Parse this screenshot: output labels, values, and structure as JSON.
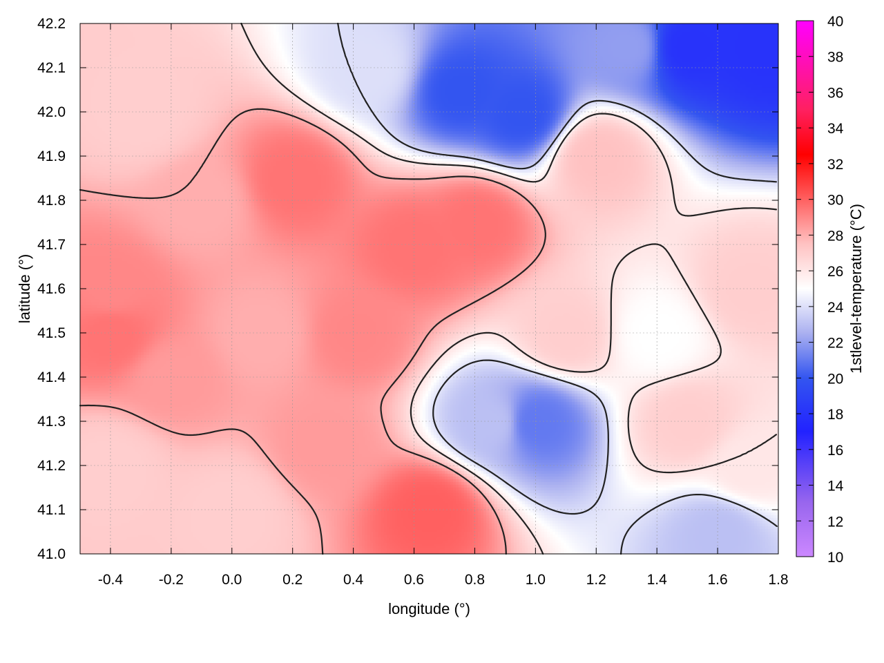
{
  "chart_data": {
    "type": "heatmap",
    "title": "",
    "xlabel": "longitude (°)",
    "ylabel": "latitude (°)",
    "xlim": [
      -0.5,
      1.8
    ],
    "ylim": [
      41.0,
      42.2
    ],
    "xticks": [
      "-0.4",
      "-0.2",
      "0.0",
      "0.2",
      "0.4",
      "0.6",
      "0.8",
      "1.0",
      "1.2",
      "1.4",
      "1.6",
      "1.8"
    ],
    "yticks": [
      "41.0",
      "41.1",
      "41.2",
      "41.3",
      "41.4",
      "41.5",
      "41.6",
      "41.7",
      "41.8",
      "41.9",
      "42.0",
      "42.1",
      "42.2"
    ],
    "grid": true,
    "colorbar": {
      "label": "1stlevel-temperature (°C)",
      "range": [
        10,
        40
      ],
      "ticks": [
        "10",
        "12",
        "14",
        "16",
        "18",
        "20",
        "22",
        "24",
        "26",
        "28",
        "30",
        "32",
        "34",
        "36",
        "38",
        "40"
      ],
      "stops": [
        {
          "value": 10,
          "color": "#cc88ff"
        },
        {
          "value": 13,
          "color": "#9966ee"
        },
        {
          "value": 17,
          "color": "#2222ff"
        },
        {
          "value": 20,
          "color": "#3355f0"
        },
        {
          "value": 22.5,
          "color": "#aab0f0"
        },
        {
          "value": 25,
          "color": "#ffffff"
        },
        {
          "value": 27.5,
          "color": "#ffc2c2"
        },
        {
          "value": 30,
          "color": "#ff6060"
        },
        {
          "value": 32.5,
          "color": "#ff0000"
        },
        {
          "value": 35,
          "color": "#ff2060"
        },
        {
          "value": 40,
          "color": "#ff00ff"
        }
      ]
    },
    "field_samples": [
      {
        "x": -0.4,
        "y": 41.6,
        "t": 29
      },
      {
        "x": -0.4,
        "y": 41.5,
        "t": 29.5
      },
      {
        "x": -0.4,
        "y": 41.2,
        "t": 27
      },
      {
        "x": -0.3,
        "y": 42.0,
        "t": 27
      },
      {
        "x": -0.2,
        "y": 41.4,
        "t": 28.5
      },
      {
        "x": -0.1,
        "y": 41.8,
        "t": 28
      },
      {
        "x": 0.0,
        "y": 41.1,
        "t": 27
      },
      {
        "x": 0.1,
        "y": 41.5,
        "t": 28
      },
      {
        "x": 0.2,
        "y": 41.85,
        "t": 29.5
      },
      {
        "x": 0.3,
        "y": 41.25,
        "t": 28.5
      },
      {
        "x": 0.4,
        "y": 41.5,
        "t": 29
      },
      {
        "x": 0.45,
        "y": 42.1,
        "t": 24
      },
      {
        "x": 0.6,
        "y": 41.7,
        "t": 29.5
      },
      {
        "x": 0.65,
        "y": 41.1,
        "t": 30
      },
      {
        "x": 0.75,
        "y": 42.05,
        "t": 20
      },
      {
        "x": 0.8,
        "y": 41.75,
        "t": 29.5
      },
      {
        "x": 0.85,
        "y": 41.3,
        "t": 23
      },
      {
        "x": 0.95,
        "y": 42.0,
        "t": 20
      },
      {
        "x": 1.0,
        "y": 41.3,
        "t": 21
      },
      {
        "x": 1.1,
        "y": 41.5,
        "t": 27
      },
      {
        "x": 1.2,
        "y": 41.9,
        "t": 27.5
      },
      {
        "x": 1.3,
        "y": 42.15,
        "t": 22
      },
      {
        "x": 1.4,
        "y": 41.5,
        "t": 25
      },
      {
        "x": 1.5,
        "y": 42.15,
        "t": 18
      },
      {
        "x": 1.5,
        "y": 41.3,
        "t": 27
      },
      {
        "x": 1.6,
        "y": 41.05,
        "t": 23
      },
      {
        "x": 1.7,
        "y": 41.6,
        "t": 27
      },
      {
        "x": 1.75,
        "y": 42.15,
        "t": 18
      },
      {
        "x": 1.7,
        "y": 41.2,
        "t": 26
      }
    ],
    "contour_levels": [
      24,
      26,
      28,
      30
    ]
  }
}
